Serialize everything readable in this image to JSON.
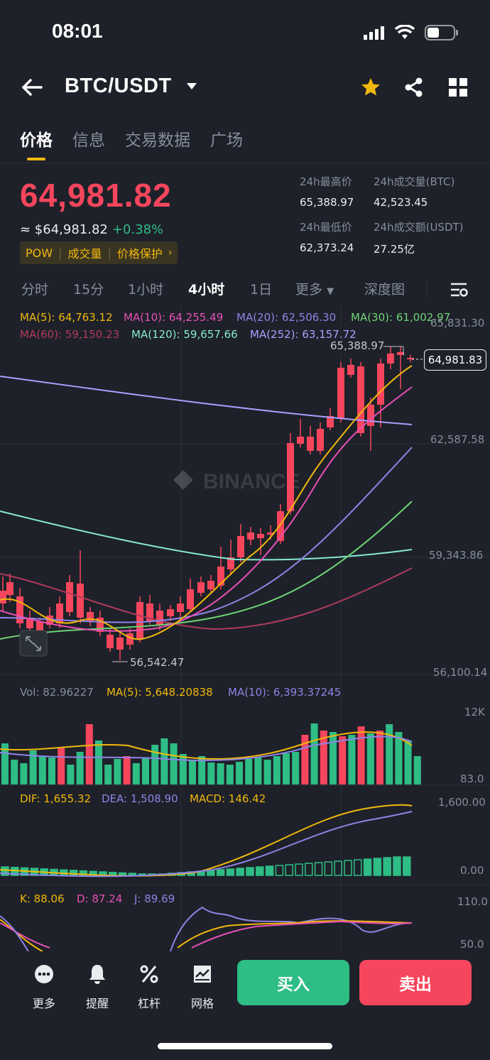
{
  "status": {
    "time": "08:01"
  },
  "nav": {
    "pair": "BTC/USDT"
  },
  "tabs": [
    "价格",
    "信息",
    "交易数据",
    "广场"
  ],
  "ticker": {
    "price": "64,981.82",
    "fiat": "≈ $64,981.82",
    "change": "+0.38%",
    "tags": [
      "POW",
      "成交量",
      "价格保护"
    ],
    "high_label": "24h最高价",
    "high": "65,388.97",
    "vol_btc_label": "24h成交量(BTC)",
    "vol_btc": "42,523.45",
    "low_label": "24h最低价",
    "low": "62,373.24",
    "vol_usdt_label": "24h成交额(USDT)",
    "vol_usdt": "27.25亿"
  },
  "intervals": [
    "分时",
    "15分",
    "1小时",
    "4小时",
    "1日",
    "更多",
    "深度图"
  ],
  "ma": {
    "ma5": "MA(5): 64,763.12",
    "ma10": "MA(10): 64,255.49",
    "ma20": "MA(20): 62,506.30",
    "ma30": "MA(30): 61,002.97",
    "ma60": "MA(60): 59,150.23",
    "ma120": "MA(120): 59,657.66",
    "ma252": "MA(252): 63,157.72"
  },
  "axis": {
    "p1": "65,831.30",
    "p2": "62,587.58",
    "p3": "59,343.86",
    "p4": "56,100.14",
    "high_mark": "65,388.97",
    "low_mark": "56,542.47",
    "last": "64,981.83",
    "vol_top": "12K",
    "vol_bottom": "83.0",
    "macd_top": "1,600.00",
    "macd_zero": "0.00",
    "kdj_top": "110.0",
    "kdj_bottom": "50.0"
  },
  "watermark": "BINANCE",
  "vol": {
    "vol": "Vol: 82.96227",
    "ma5": "MA(5): 5,648.20838",
    "ma10": "MA(10): 6,393.37245"
  },
  "macd": {
    "dif": "DIF: 1,655.32",
    "dea": "DEA: 1,508.90",
    "macd": "MACD: 146.42"
  },
  "kdj": {
    "k": "K: 88.06",
    "d": "D: 87.24",
    "j": "J: 89.69"
  },
  "bottom": {
    "more": "更多",
    "alert": "提醒",
    "leverage": "杠杆",
    "grid": "网格",
    "buy": "买入",
    "sell": "卖出"
  },
  "colors": {
    "up": "#2ebd85",
    "down": "#f6465d",
    "accent": "#f0b90b",
    "bg": "#1e2129"
  }
}
